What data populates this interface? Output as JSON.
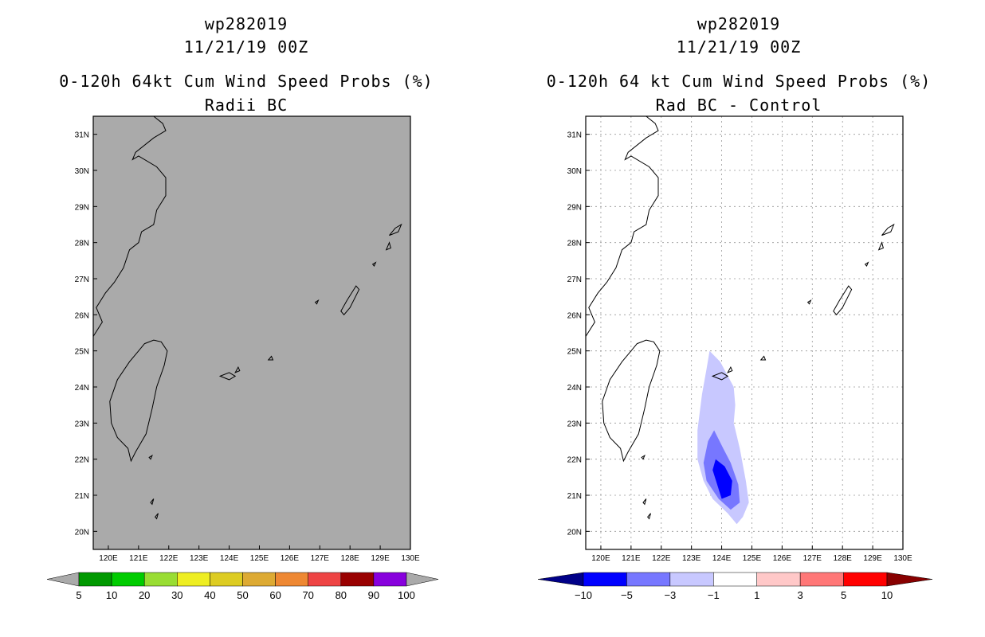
{
  "left_panel": {
    "storm_id": "wp282019",
    "datetime": "11/21/19 00Z",
    "title": "0-120h 64kt Cum Wind Speed Probs (%)",
    "subtitle": "Radii BC",
    "field_fill_color": "#aaaaaa",
    "colorbar": {
      "colors": [
        "#009900",
        "#00cc00",
        "#99dd33",
        "#eeee22",
        "#ddcc22",
        "#ddaa33",
        "#ee8833",
        "#ee4444",
        "#990000",
        "#8800dd"
      ],
      "end_colors": [
        "#aaaaaa",
        "#aaaaaa"
      ],
      "labels": [
        "5",
        "10",
        "20",
        "30",
        "40",
        "50",
        "60",
        "70",
        "80",
        "90",
        "100"
      ]
    }
  },
  "right_panel": {
    "storm_id": "wp282019",
    "datetime": "11/21/19 00Z",
    "title": "0-120h 64 kt Cum Wind Speed Probs (%)",
    "subtitle": "Rad BC - Control",
    "colorbar": {
      "colors": [
        "#0000ff",
        "#7777ff",
        "#c8c8ff",
        "#ffffff",
        "#ffc8c8",
        "#ff7777",
        "#ff0000"
      ],
      "end_colors": [
        "#000088",
        "#880000"
      ],
      "labels": [
        "−10",
        "−5",
        "−3",
        "−1",
        "1",
        "3",
        "5",
        "10"
      ]
    },
    "difference_field": [
      {
        "level": "-1 to -3",
        "color": "#c8c8ff"
      },
      {
        "level": "-3 to -5",
        "color": "#7777ff"
      },
      {
        "level": "-5 to -10",
        "color": "#0000ff"
      }
    ]
  },
  "map": {
    "lon_range": [
      119.5,
      130
    ],
    "lat_range": [
      19.5,
      31.5
    ],
    "lon_ticks": [
      120,
      121,
      122,
      123,
      124,
      125,
      126,
      127,
      128,
      129,
      130
    ],
    "lat_ticks": [
      20,
      21,
      22,
      23,
      24,
      25,
      26,
      27,
      28,
      29,
      30,
      31
    ],
    "lon_labels": [
      "120E",
      "121E",
      "122E",
      "123E",
      "124E",
      "125E",
      "126E",
      "127E",
      "128E",
      "129E",
      "130E"
    ],
    "lat_labels": [
      "20N",
      "21N",
      "22N",
      "23N",
      "24N",
      "25N",
      "26N",
      "27N",
      "28N",
      "29N",
      "30N",
      "31N"
    ]
  }
}
